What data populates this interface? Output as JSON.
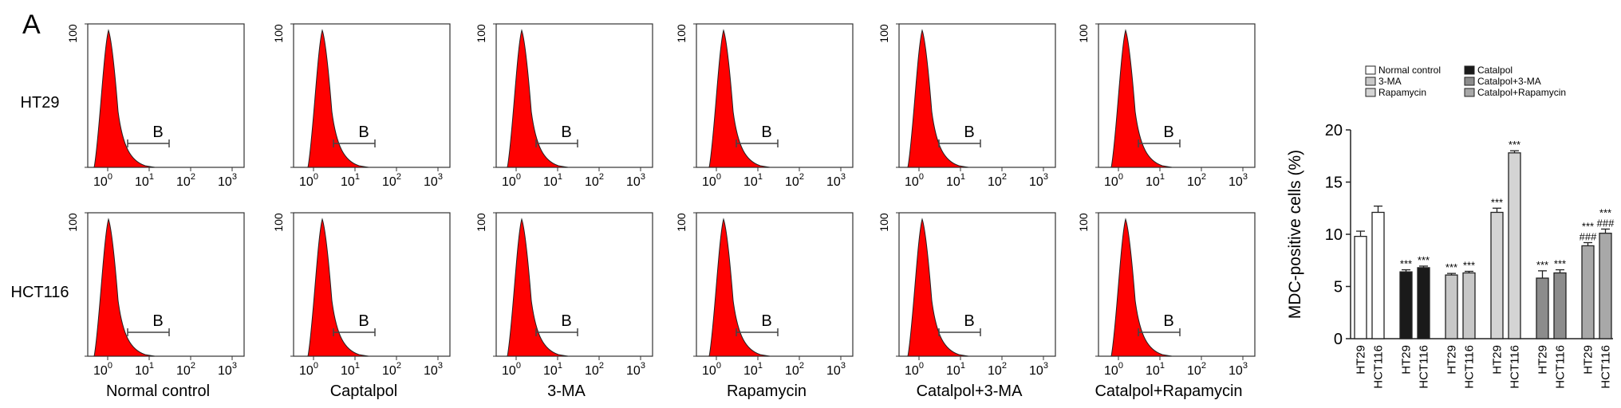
{
  "panel_letter": "A",
  "histogram_panel": {
    "row_labels": [
      "HT29",
      "HCT116"
    ],
    "column_labels": [
      "Normal control",
      "Captalpol",
      "3-MA",
      "Rapamycin",
      "Catalpol+3-MA",
      "Catalpol+Rapamycin"
    ],
    "y_axis_max_label": "100",
    "gate_label": "B",
    "x_ticks": [
      {
        "base": "10",
        "exp": "0"
      },
      {
        "base": "10",
        "exp": "1"
      },
      {
        "base": "10",
        "exp": "2"
      },
      {
        "base": "10",
        "exp": "3"
      }
    ],
    "fill_color": "#ff0000"
  },
  "chart_data": {
    "type": "bar",
    "ylabel": "MDC-positive cells (%)",
    "ylim": [
      0,
      20
    ],
    "yticks": [
      0,
      5,
      10,
      15,
      20
    ],
    "categories": [
      "HT29",
      "HCT116",
      "HT29",
      "HCT116",
      "HT29",
      "HCT116",
      "HT29",
      "HCT116",
      "HT29",
      "HCT116",
      "HT29",
      "HCT116"
    ],
    "groups": [
      {
        "name": "Normal control",
        "fill": "#ffffff",
        "values": [
          9.8,
          12.1
        ],
        "errors": [
          0.5,
          0.6
        ],
        "annotations": [
          [],
          []
        ]
      },
      {
        "name": "Catalpol",
        "fill": "#1a1a1a",
        "values": [
          6.4,
          6.8
        ],
        "errors": [
          0.2,
          0.15
        ],
        "annotations": [
          [
            "***"
          ],
          [
            "***"
          ]
        ]
      },
      {
        "name": "3-MA",
        "fill": "#c8c8c8",
        "values": [
          6.1,
          6.3
        ],
        "errors": [
          0.15,
          0.15
        ],
        "annotations": [
          [
            "***"
          ],
          [
            "***"
          ]
        ]
      },
      {
        "name": "Rapamycin",
        "fill": "#d4d4d4",
        "values": [
          12.1,
          17.8
        ],
        "errors": [
          0.4,
          0.2
        ],
        "annotations": [
          [
            "***"
          ],
          [
            "***"
          ]
        ]
      },
      {
        "name": "Catalpol+3-MA",
        "fill": "#8c8c8c",
        "values": [
          5.8,
          6.3
        ],
        "errors": [
          0.7,
          0.3
        ],
        "annotations": [
          [
            "***"
          ],
          [
            "***"
          ]
        ]
      },
      {
        "name": "Catalpol+Rapamycin",
        "fill": "#a8a8a8",
        "values": [
          8.9,
          10.1
        ],
        "errors": [
          0.3,
          0.4
        ],
        "annotations": [
          [
            "***",
            "###"
          ],
          [
            "***",
            "###"
          ]
        ]
      }
    ],
    "legend_placement": "top",
    "grid": false
  }
}
